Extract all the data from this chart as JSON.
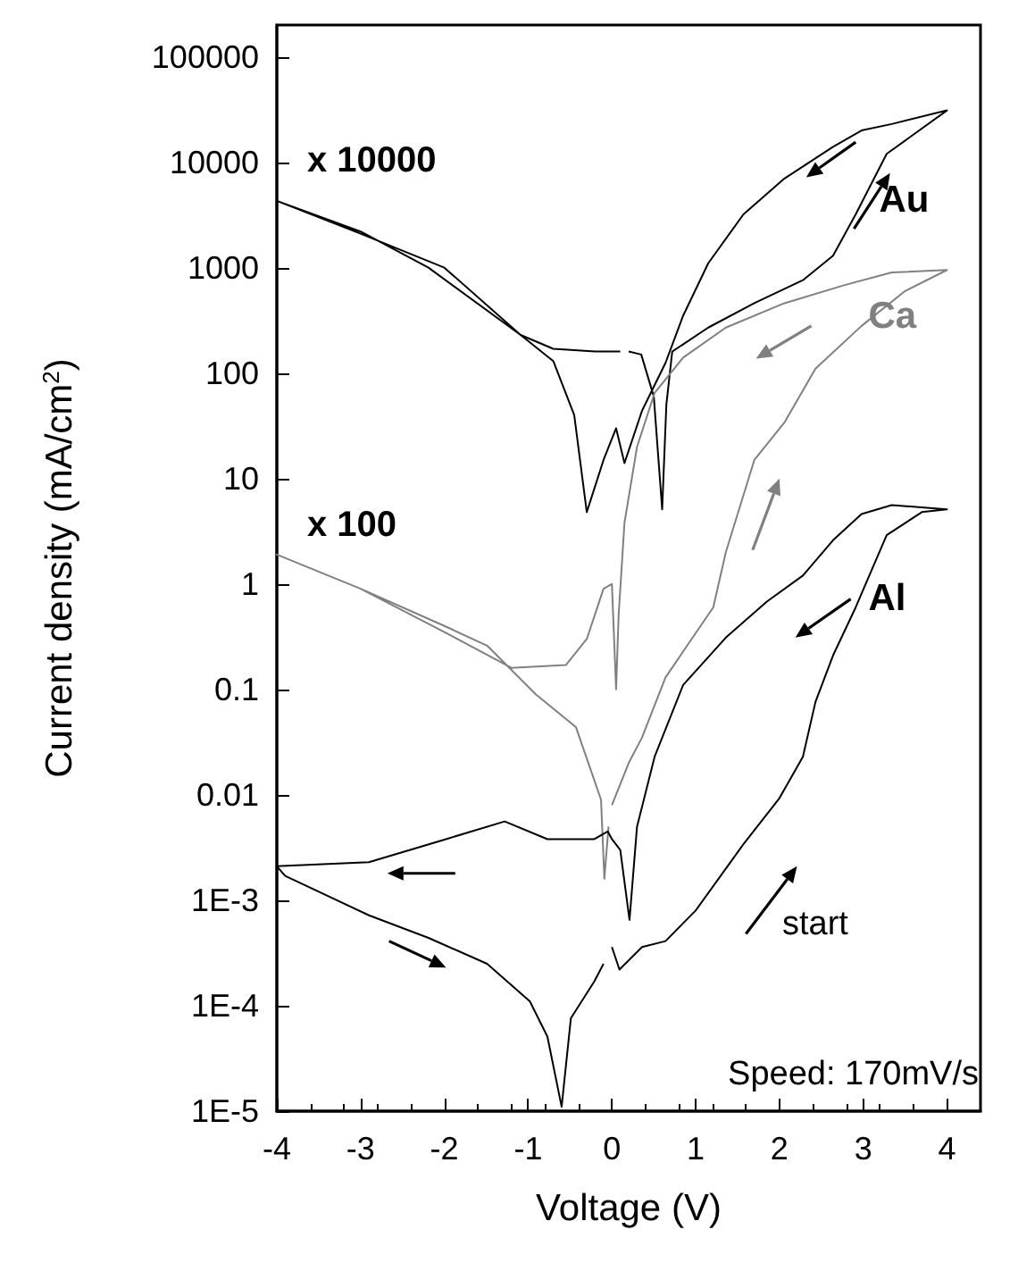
{
  "chart_data": {
    "type": "line",
    "xlabel": "Voltage (V)",
    "ylabel": "Current density (mA/cm$^{2}$)",
    "xlim": [
      -4,
      4.4
    ],
    "ylim": [
      1e-05,
      200000
    ],
    "log": "y",
    "grid": false,
    "xticks": [
      -4,
      -3,
      -2,
      -1,
      0,
      1,
      2,
      3,
      4
    ],
    "yticks": [
      {
        "value": 1e-05,
        "label": "1E-5"
      },
      {
        "value": 0.0001,
        "label": "1E-4"
      },
      {
        "value": 0.001,
        "label": "1E-3"
      },
      0.01,
      0.1,
      1,
      10,
      100,
      1000,
      10000,
      100000
    ],
    "series": [
      {
        "name": "Au",
        "color": "#000000",
        "x": [
          0.2,
          0.35,
          0.5,
          0.6,
          0.65,
          0.72,
          1.15,
          1.7,
          2.28,
          2.64,
          2.91,
          3.28,
          4,
          3.34,
          2.98,
          2.64,
          2.06,
          1.57,
          1.15,
          0.85,
          0.64,
          0.36,
          0.15,
          0.05,
          -0.1,
          -0.3,
          -0.45,
          -0.7,
          -1.09,
          -2.19,
          -3,
          -4,
          -3,
          -2,
          -1.09,
          -0.7,
          -0.2,
          0.1
        ],
        "values": [
          160,
          150,
          60,
          5.1,
          50,
          160,
          270,
          460,
          760,
          1300,
          3200,
          12000,
          31000,
          23000,
          20000,
          14000,
          7000,
          3200,
          1100,
          350,
          125,
          44,
          14,
          30,
          15,
          4.8,
          40,
          130,
          230,
          1000,
          2200,
          4300,
          2100,
          1000,
          230,
          170,
          160,
          160
        ]
      },
      {
        "name": "Ca",
        "color": "#808080",
        "x": [
          0,
          0.2,
          0.36,
          0.64,
          1.21,
          1.36,
          1.7,
          2.06,
          2.43,
          2.98,
          3.5,
          4,
          3.34,
          2.77,
          2.06,
          1.36,
          0.85,
          0.51,
          0.3,
          0.15,
          0.08,
          0.05,
          0,
          -0.1,
          -0.3,
          -0.55,
          -1.2,
          -2,
          -3,
          -4,
          -3,
          -2,
          -1.49,
          -0.91,
          -0.43,
          -0.13,
          -0.09,
          -0.04
        ],
        "values": [
          0.008,
          0.02,
          0.035,
          0.13,
          0.6,
          2,
          15,
          34,
          110,
          280,
          600,
          950,
          900,
          680,
          460,
          270,
          140,
          65,
          20,
          3.8,
          0.5,
          0.1,
          1,
          0.9,
          0.3,
          0.17,
          0.16,
          0.35,
          0.9,
          1.9,
          0.9,
          0.4,
          0.26,
          0.09,
          0.044,
          0.009,
          0.0016,
          0.005
        ]
      },
      {
        "name": "Al",
        "color": "#000000",
        "x": [
          0,
          0.09,
          0.36,
          0.64,
          1,
          1.57,
          2,
          2.28,
          2.43,
          2.64,
          2.91,
          3.28,
          3.7,
          4,
          3.34,
          2.98,
          2.64,
          2.28,
          1.85,
          1.36,
          0.85,
          0.51,
          0.3,
          0.21,
          0.1,
          0,
          -0.05,
          -0.21,
          -0.77,
          -1.28,
          -1.98,
          -2.9,
          -4,
          -3.9,
          -2.9,
          -2.19,
          -1.49,
          -0.98,
          -0.77,
          -0.6,
          -0.49,
          -0.21,
          -0.1
        ],
        "values": [
          0.00036,
          0.00022,
          0.00036,
          0.00041,
          0.0008,
          0.0034,
          0.0093,
          0.023,
          0.076,
          0.21,
          0.6,
          2.9,
          4.8,
          5.1,
          5.6,
          4.6,
          2.6,
          1.2,
          0.68,
          0.31,
          0.11,
          0.023,
          0.005,
          0.00065,
          0.003,
          0.0038,
          0.0045,
          0.0038,
          0.0038,
          0.0056,
          0.0038,
          0.0023,
          0.0021,
          0.0017,
          0.00072,
          0.00044,
          0.00025,
          0.00011,
          5.1e-05,
          1.1e-05,
          7.6e-05,
          0.00017,
          0.00025
        ]
      }
    ],
    "legend": "right",
    "annotations": [
      "x 10000",
      "x 100",
      "start",
      "Speed: 170mV/s"
    ]
  }
}
